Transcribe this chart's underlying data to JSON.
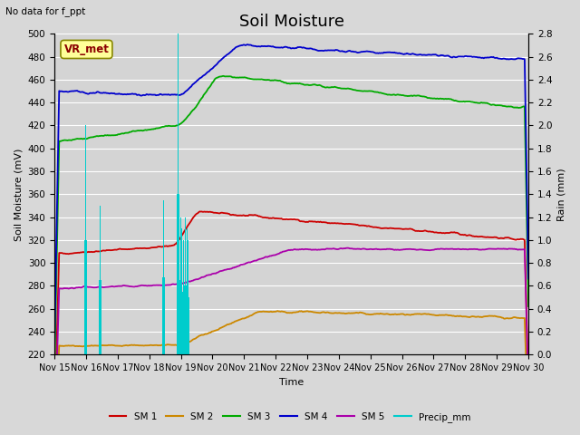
{
  "title": "Soil Moisture",
  "top_left_text": "No data for f_ppt",
  "station_label": "VR_met",
  "ylabel_left": "Soil Moisture (mV)",
  "ylabel_right": "Rain (mm)",
  "xlabel": "Time",
  "ylim_left": [
    220,
    500
  ],
  "ylim_right": [
    0.0,
    2.8
  ],
  "yticks_left": [
    220,
    240,
    260,
    280,
    300,
    320,
    340,
    360,
    380,
    400,
    420,
    440,
    460,
    480,
    500
  ],
  "yticks_right": [
    0.0,
    0.2,
    0.4,
    0.6,
    0.8,
    1.0,
    1.2,
    1.4,
    1.6,
    1.8,
    2.0,
    2.2,
    2.4,
    2.6,
    2.8
  ],
  "n_points": 500,
  "colors": {
    "SM1": "#cc0000",
    "SM2": "#cc8800",
    "SM3": "#00aa00",
    "SM4": "#0000cc",
    "SM5": "#aa00aa",
    "Precip": "#00cccc"
  },
  "background_color": "#d8d8d8",
  "axes_bg_color": "#d4d4d4",
  "grid_color": "#ffffff",
  "title_fontsize": 13,
  "label_fontsize": 8,
  "tick_fontsize": 7.5
}
